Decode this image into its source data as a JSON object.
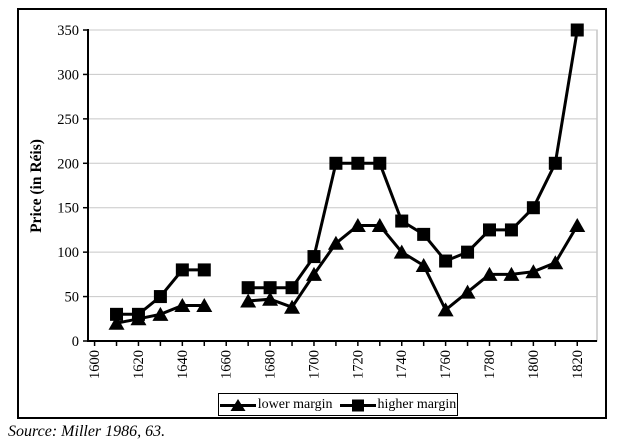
{
  "chart_data": {
    "type": "line",
    "title": "",
    "ylabel": "Price (in Réis)",
    "xlabel": "",
    "ylim": [
      0,
      350
    ],
    "y_ticks": [
      0,
      50,
      100,
      150,
      200,
      250,
      300,
      350
    ],
    "x_ticks": [
      1600,
      1610,
      1620,
      1630,
      1640,
      1650,
      1660,
      1670,
      1680,
      1690,
      1700,
      1710,
      1720,
      1730,
      1740,
      1750,
      1760,
      1770,
      1780,
      1790,
      1800,
      1810,
      1820
    ],
    "x_tick_labels": [
      1600,
      1620,
      1640,
      1660,
      1680,
      1700,
      1720,
      1740,
      1760,
      1780,
      1800,
      1820
    ],
    "x_domain": [
      1597,
      1829
    ],
    "x": [
      1610,
      1620,
      1630,
      1640,
      1650,
      1660,
      1670,
      1680,
      1690,
      1700,
      1710,
      1720,
      1730,
      1740,
      1750,
      1760,
      1770,
      1780,
      1790,
      1800,
      1810,
      1820
    ],
    "series": [
      {
        "name": "lower margin",
        "marker": "triangle",
        "values": [
          20,
          25,
          30,
          40,
          40,
          null,
          45,
          47,
          38,
          75,
          110,
          130,
          130,
          100,
          85,
          35,
          55,
          75,
          75,
          78,
          88,
          130
        ]
      },
      {
        "name": "higher margin",
        "marker": "square",
        "values": [
          30,
          30,
          50,
          80,
          80,
          null,
          60,
          60,
          60,
          95,
          200,
          200,
          200,
          135,
          120,
          90,
          100,
          125,
          125,
          150,
          200,
          350
        ]
      }
    ],
    "grid": true,
    "legend_position": "bottom",
    "colors": {
      "series": "#000000",
      "gridline": "#c8c8c8",
      "plot_border": "#a8a8a8",
      "background": "#ffffff"
    },
    "source_note": "Source: Miller 1986, 63."
  }
}
